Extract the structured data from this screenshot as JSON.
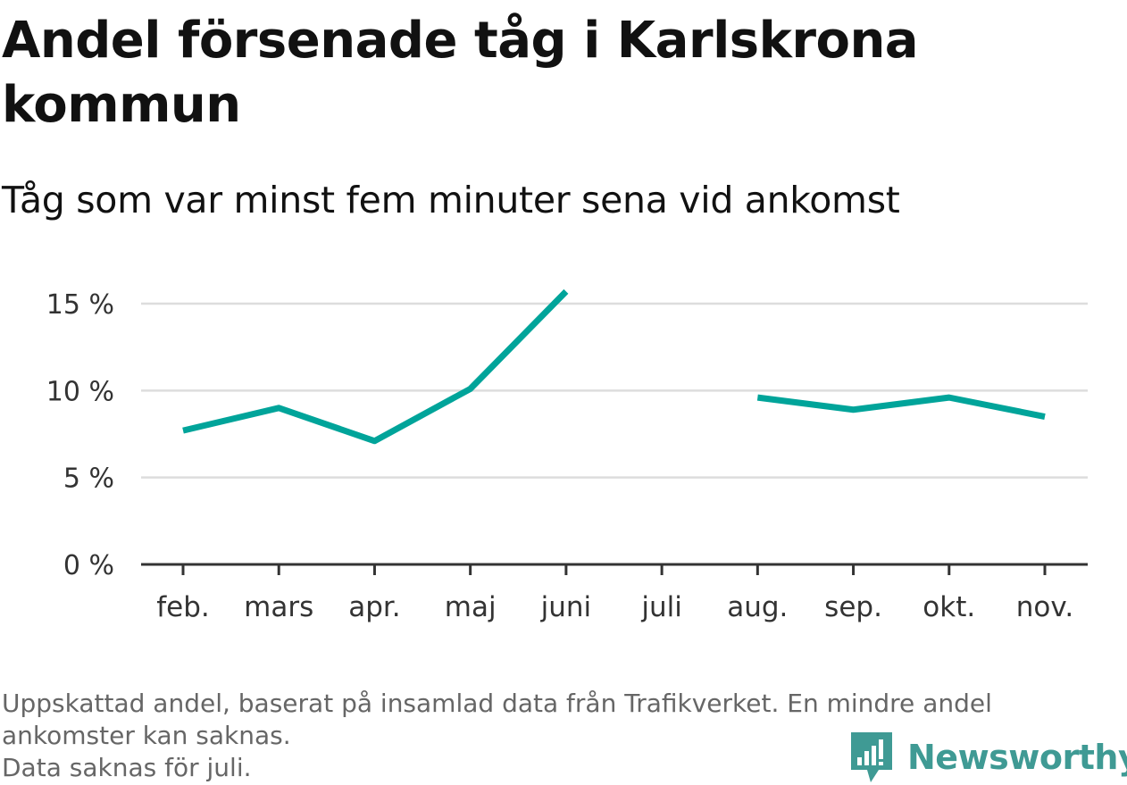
{
  "title": "Andel försenade tåg i Karlskrona kommun",
  "subtitle": "Tåg som var minst fem minuter sena vid ankomst",
  "footnote": {
    "line1": "Uppskattad andel, baserat på insamlad data från Trafikverket. En mindre andel",
    "line2": "ankomster kan saknas.",
    "line3": "Data saknas för juli."
  },
  "brand": {
    "name": "Newsworthy",
    "icon": "bar-chart-speech-bubble-icon"
  },
  "colors": {
    "line": "#00a49a",
    "grid": "#dddddd",
    "axis": "#333333",
    "brand": "#3f9a94"
  },
  "chart_data": {
    "type": "line",
    "categories": [
      "feb.",
      "mars",
      "apr.",
      "maj",
      "juni",
      "juli",
      "aug.",
      "sep.",
      "okt.",
      "nov."
    ],
    "series": [
      {
        "values": [
          7.7,
          9.0,
          7.1,
          10.1,
          15.7,
          null,
          9.6,
          8.9,
          9.6,
          8.5
        ]
      }
    ],
    "yticks": [
      0,
      5,
      10,
      15
    ],
    "ytick_labels": [
      "0 %",
      "5 %",
      "10 %",
      "15 %"
    ],
    "ylim": [
      0,
      15
    ],
    "grid": true,
    "legend": "none"
  }
}
